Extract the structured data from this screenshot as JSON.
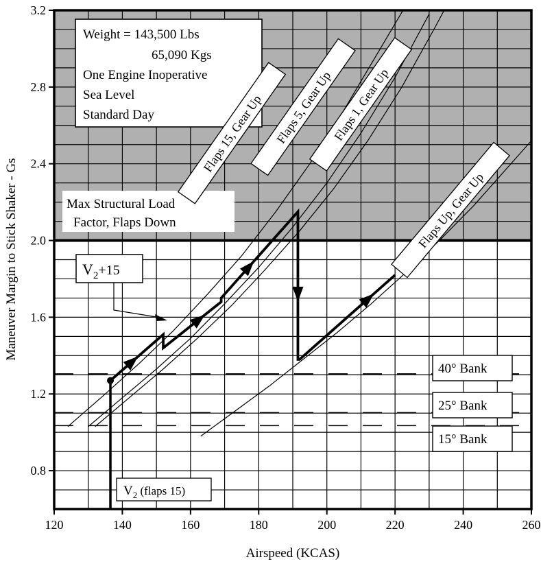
{
  "chart_data": {
    "type": "line",
    "xlabel": "Airspeed (KCAS)",
    "ylabel": "Maneuver Margin to Stick Shaker - Gs",
    "xlim": [
      120,
      260
    ],
    "ylim": [
      0.6,
      3.2
    ],
    "x_ticks": [
      120,
      140,
      160,
      180,
      200,
      220,
      240,
      260
    ],
    "y_ticks": [
      0.8,
      1.2,
      1.6,
      2.0,
      2.4,
      2.8,
      3.2
    ],
    "x_tick_labels": [
      "120",
      "140",
      "160",
      "180",
      "200",
      "220",
      "240",
      "260"
    ],
    "y_tick_labels": [
      "0.8",
      "1.2",
      "1.6",
      "2.0",
      "2.4",
      "2.8",
      "3.2"
    ],
    "grid": true,
    "shaded_region": {
      "y_from": 2.0,
      "y_to": 3.2,
      "color": "#b0b0b0"
    },
    "conditions": {
      "line1": "Weight = 143,500 Lbs",
      "line2": "65,090 Kgs",
      "line3": "One Engine Inoperative",
      "line4": "Sea Level",
      "line5": "Standard Day"
    },
    "structural_limit": {
      "y": 2.0,
      "label_line1": "Max Structural Load",
      "label_line2": "Factor, Flaps Down"
    },
    "series": [
      {
        "name": "Flaps 15, Gear Up",
        "x": [
          124,
          135,
          145,
          155,
          165,
          175,
          185,
          195,
          205,
          215,
          223
        ],
        "y": [
          1.03,
          1.2,
          1.36,
          1.53,
          1.72,
          1.92,
          2.15,
          2.4,
          2.68,
          2.98,
          3.22
        ]
      },
      {
        "name": "Flaps 5, Gear Up",
        "x": [
          130,
          140,
          150,
          160,
          170,
          180,
          190,
          200,
          210,
          220,
          230
        ],
        "y": [
          1.03,
          1.18,
          1.33,
          1.49,
          1.67,
          1.86,
          2.07,
          2.3,
          2.56,
          2.85,
          3.18
        ]
      },
      {
        "name": "Flaps 1, Gear Up",
        "x": [
          132,
          142,
          152,
          162,
          172,
          182,
          192,
          202,
          212,
          222,
          232,
          235
        ],
        "y": [
          1.03,
          1.18,
          1.33,
          1.49,
          1.66,
          1.85,
          2.05,
          2.27,
          2.52,
          2.8,
          3.12,
          3.22
        ]
      },
      {
        "name": "Flaps Up, Gear Up",
        "x": [
          163,
          173,
          183,
          193,
          203,
          213,
          223,
          233,
          243,
          253,
          260
        ],
        "y": [
          0.98,
          1.11,
          1.24,
          1.38,
          1.52,
          1.67,
          1.83,
          2.0,
          2.18,
          2.38,
          2.52
        ]
      }
    ],
    "profile_path": {
      "x": [
        136.5,
        152,
        152,
        169,
        169,
        191.5,
        191.5,
        192,
        220
      ],
      "y": [
        1.27,
        1.51,
        1.44,
        1.68,
        1.7,
        2.15,
        1.38,
        1.38,
        1.82
      ]
    },
    "profile_arrows": [
      {
        "x": 143,
        "y": 1.37
      },
      {
        "x": 162,
        "y": 1.6
      },
      {
        "x": 178,
        "y": 1.85
      },
      {
        "x": 191.5,
        "y": 1.72
      },
      {
        "x": 212,
        "y": 1.7
      }
    ],
    "start_point": {
      "x": 136.5,
      "y": 1.27
    },
    "bank_lines": [
      {
        "label": "40° Bank",
        "y": 1.305
      },
      {
        "label": "25° Bank",
        "y": 1.103
      },
      {
        "label": "15° Bank",
        "y": 1.035
      }
    ],
    "annotations": {
      "v2_plus_15": {
        "main": "V",
        "sub": "2",
        "suffix": "+15"
      },
      "v2_flaps15": {
        "main": "V",
        "sub": "2",
        "suffix": " (flaps 15)"
      }
    }
  }
}
